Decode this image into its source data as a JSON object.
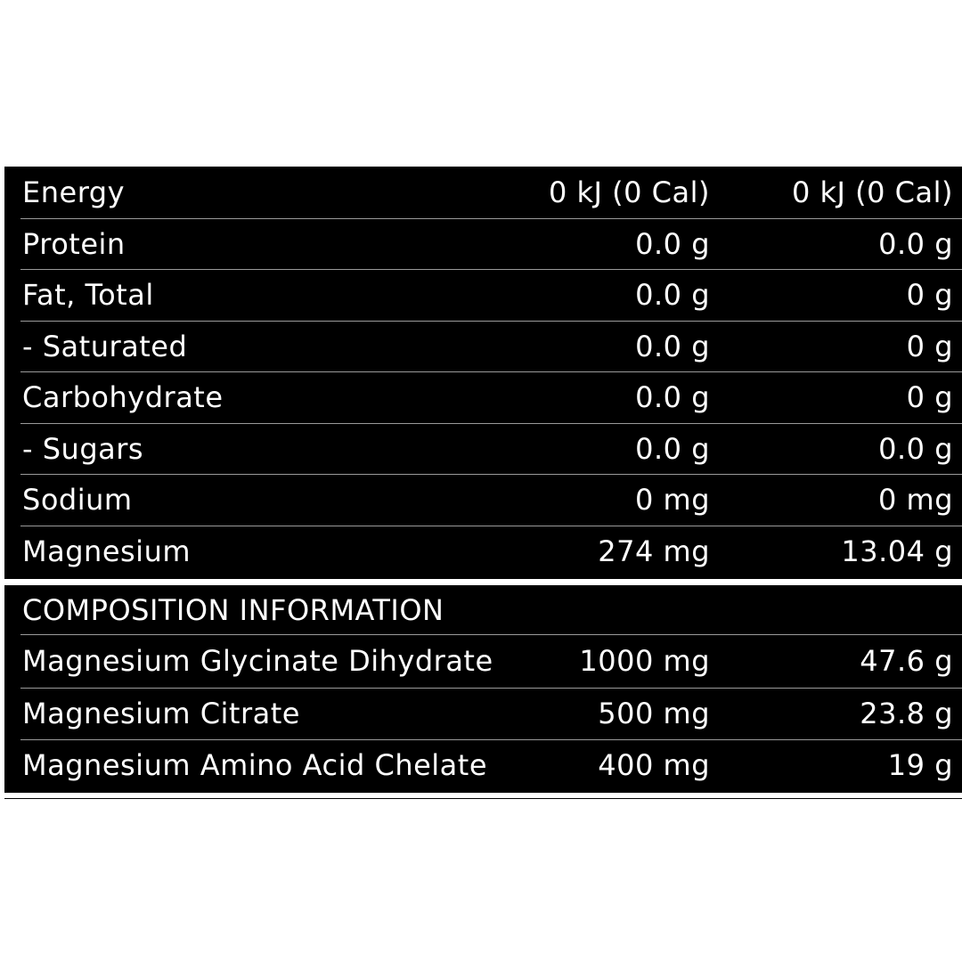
{
  "nutrition": {
    "rows": [
      [
        "Energy",
        "0 kJ (0 Cal)",
        "0 kJ (0 Cal)"
      ],
      [
        "Protein",
        "0.0 g",
        "0.0 g"
      ],
      [
        "Fat, Total",
        "0.0 g",
        "0 g"
      ],
      [
        "- Saturated",
        "0.0 g",
        "0 g"
      ],
      [
        "Carbohydrate",
        "0.0 g",
        "0 g"
      ],
      [
        "- Sugars",
        "0.0 g",
        "0.0 g"
      ],
      [
        "Sodium",
        "0 mg",
        "0 mg"
      ],
      [
        "Magnesium",
        "274 mg",
        "13.04 g"
      ]
    ]
  },
  "composition": {
    "title": "COMPOSITION INFORMATION",
    "rows": [
      [
        "Magnesium Glycinate Dihydrate",
        "1000 mg",
        "47.6 g"
      ],
      [
        "Magnesium Citrate",
        "500 mg",
        "23.8 g"
      ],
      [
        "Magnesium Amino Acid Chelate",
        "400 mg",
        "19 g"
      ]
    ]
  }
}
